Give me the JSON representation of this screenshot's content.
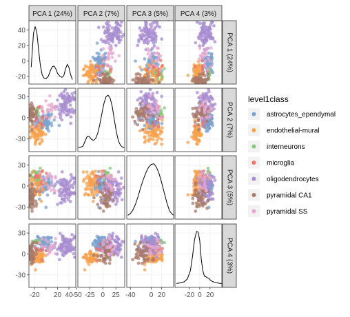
{
  "chart_data": {
    "type": "scatter",
    "subtype": "pairs-matrix",
    "variables": [
      "PCA 1 (24%)",
      "PCA 2 (7%)",
      "PCA 3 (5%)",
      "PCA 4 (3%)"
    ],
    "limits": [
      [
        -30,
        52
      ],
      [
        -48,
        42
      ],
      [
        -47,
        43
      ],
      [
        -48,
        43
      ]
    ],
    "y_ticks": [
      [
        -20,
        0,
        20,
        40
      ],
      [
        -30,
        0,
        30
      ],
      [
        -30,
        0,
        30
      ],
      [
        -30,
        0,
        30
      ]
    ],
    "x_ticks": [
      [
        -20,
        20,
        40
      ],
      [
        -50,
        -25,
        0,
        25
      ],
      [
        -40,
        0,
        20
      ],
      [
        -20,
        0,
        20
      ]
    ],
    "x_tick_labels": [
      [
        "-20",
        "20",
        "40"
      ],
      [
        "-50",
        "-25",
        "0",
        "25"
      ],
      [
        "-40",
        "0",
        "20"
      ],
      [
        "-20",
        "0",
        "20"
      ]
    ],
    "extra_x_tick": {
      "value": 0,
      "label": "0"
    },
    "legend": {
      "title": "level1class",
      "position": "right",
      "classes": [
        "astrocytes_ependymal",
        "endothelial-mural",
        "interneurons",
        "microglia",
        "oligodendrocytes",
        "pyramidal CA1",
        "pyramidal SS"
      ]
    },
    "colors": [
      "#7ba3cf",
      "#f7a24d",
      "#87c87a",
      "#e8736f",
      "#a88cd0",
      "#a87a6a",
      "#e6a8cf"
    ],
    "class_centroids": [
      {
        "class": "astrocytes_ependymal",
        "pc": [
          -2,
          -5,
          2,
          15
        ],
        "spread": [
          9,
          8,
          8,
          6
        ]
      },
      {
        "class": "endothelial-mural",
        "pc": [
          -15,
          -22,
          3,
          -6
        ],
        "spread": [
          6,
          8,
          10,
          4
        ]
      },
      {
        "class": "interneurons",
        "pc": [
          -18,
          8,
          20,
          18
        ],
        "spread": [
          5,
          6,
          6,
          5
        ]
      },
      {
        "class": "microglia",
        "pc": [
          -12,
          0,
          12,
          5
        ],
        "spread": [
          6,
          8,
          8,
          6
        ]
      },
      {
        "class": "oligodendrocytes",
        "pc": [
          35,
          18,
          -5,
          12
        ],
        "spread": [
          9,
          9,
          9,
          8
        ]
      },
      {
        "class": "pyramidal CA1",
        "pc": [
          -25,
          5,
          -15,
          0
        ],
        "spread": [
          4,
          8,
          10,
          8
        ]
      },
      {
        "class": "pyramidal SS",
        "pc": [
          5,
          15,
          5,
          10
        ],
        "spread": [
          8,
          8,
          8,
          8
        ]
      }
    ],
    "density_curves": [
      {
        "variable": "PCA 1 (24%)",
        "x": [
          -26,
          -22,
          -19,
          -16,
          -13,
          -10,
          -7,
          -4,
          0,
          4,
          8,
          11,
          14,
          17,
          20,
          24,
          28,
          31,
          34,
          37,
          40,
          43,
          46
        ],
        "y": [
          0.25,
          0.85,
          0.97,
          0.85,
          0.55,
          0.28,
          0.12,
          0.06,
          0.05,
          0.09,
          0.2,
          0.26,
          0.27,
          0.22,
          0.14,
          0.09,
          0.07,
          0.1,
          0.22,
          0.3,
          0.25,
          0.12,
          0.03
        ]
      },
      {
        "variable": "PCA 2 (7%)",
        "x": [
          -47,
          -42,
          -38,
          -34,
          -30,
          -26,
          -22,
          -18,
          -14,
          -10,
          -6,
          -2,
          2,
          6,
          10,
          14,
          18,
          22,
          26,
          30,
          34,
          38,
          41
        ],
        "y": [
          0.02,
          0.03,
          0.05,
          0.14,
          0.22,
          0.22,
          0.17,
          0.15,
          0.18,
          0.27,
          0.42,
          0.62,
          0.8,
          0.92,
          0.95,
          0.9,
          0.75,
          0.52,
          0.3,
          0.14,
          0.06,
          0.03,
          0.02
        ]
      },
      {
        "variable": "PCA 3 (5%)",
        "x": [
          -45,
          -40,
          -35,
          -30,
          -25,
          -20,
          -15,
          -10,
          -5,
          0,
          5,
          10,
          15,
          20,
          25,
          30,
          35,
          40,
          43
        ],
        "y": [
          0.02,
          0.05,
          0.12,
          0.22,
          0.36,
          0.52,
          0.66,
          0.78,
          0.87,
          0.92,
          0.93,
          0.87,
          0.76,
          0.6,
          0.42,
          0.24,
          0.1,
          0.04,
          0.02
        ]
      },
      {
        "variable": "PCA 4 (3%)",
        "x": [
          -45,
          -38,
          -30,
          -24,
          -18,
          -14,
          -10,
          -6,
          -3,
          0,
          3,
          6,
          9,
          12,
          15,
          18,
          22,
          26,
          30,
          35,
          40,
          43
        ],
        "y": [
          0.02,
          0.03,
          0.05,
          0.1,
          0.25,
          0.5,
          0.8,
          0.94,
          0.93,
          0.78,
          0.45,
          0.25,
          0.15,
          0.14,
          0.12,
          0.11,
          0.07,
          0.05,
          0.04,
          0.03,
          0.02,
          0.02
        ]
      }
    ]
  }
}
